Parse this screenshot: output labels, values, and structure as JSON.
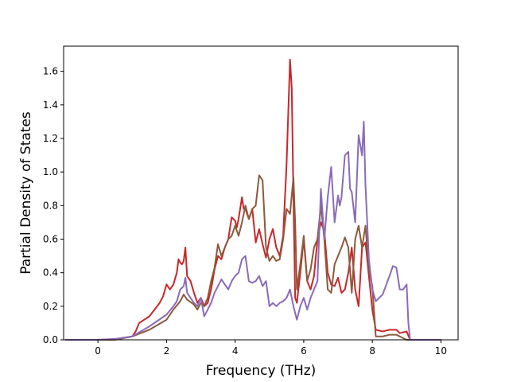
{
  "chart_data": {
    "type": "line",
    "title": "",
    "xlabel": "Frequency (THz)",
    "ylabel": "Partial Density of States",
    "xlim": [
      -1.0,
      10.5
    ],
    "ylim": [
      0.0,
      1.75
    ],
    "xticks": [
      0,
      2,
      4,
      6,
      8,
      10
    ],
    "yticks": [
      0.0,
      0.2,
      0.4,
      0.6,
      0.8,
      1.0,
      1.2,
      1.4,
      1.6
    ],
    "grid": false,
    "legend": "none",
    "series": [
      {
        "color": "#c8272a",
        "x": [
          -0.95,
          0.0,
          0.5,
          1.0,
          1.1,
          1.2,
          1.5,
          1.8,
          1.9,
          2.0,
          2.1,
          2.2,
          2.3,
          2.35,
          2.4,
          2.45,
          2.5,
          2.55,
          2.6,
          2.7,
          2.8,
          2.9,
          3.0,
          3.1,
          3.2,
          3.3,
          3.4,
          3.5,
          3.6,
          3.7,
          3.8,
          3.9,
          4.0,
          4.05,
          4.1,
          4.2,
          4.25,
          4.3,
          4.4,
          4.5,
          4.6,
          4.7,
          4.8,
          4.9,
          5.0,
          5.1,
          5.2,
          5.3,
          5.4,
          5.5,
          5.6,
          5.65,
          5.7,
          5.75,
          5.8,
          5.9,
          6.0,
          6.1,
          6.2,
          6.3,
          6.4,
          6.5,
          6.6,
          6.7,
          6.8,
          6.9,
          7.0,
          7.1,
          7.2,
          7.3,
          7.4,
          7.5,
          7.6,
          7.7,
          7.8,
          7.9,
          8.0,
          8.1,
          8.3,
          8.5,
          8.7,
          8.8,
          9.0,
          9.1,
          9.5,
          10.0
        ],
        "y": [
          0.0,
          0.0,
          0.005,
          0.02,
          0.05,
          0.1,
          0.14,
          0.22,
          0.26,
          0.33,
          0.3,
          0.33,
          0.4,
          0.48,
          0.46,
          0.45,
          0.47,
          0.55,
          0.38,
          0.35,
          0.28,
          0.22,
          0.25,
          0.2,
          0.22,
          0.3,
          0.42,
          0.5,
          0.48,
          0.55,
          0.6,
          0.73,
          0.71,
          0.67,
          0.72,
          0.85,
          0.78,
          0.78,
          0.72,
          0.78,
          0.58,
          0.66,
          0.57,
          0.49,
          0.6,
          0.66,
          0.55,
          0.5,
          0.62,
          1.05,
          1.67,
          1.5,
          0.85,
          0.25,
          0.22,
          0.4,
          0.6,
          0.35,
          0.3,
          0.38,
          0.6,
          0.7,
          0.65,
          0.4,
          0.33,
          0.32,
          0.37,
          0.28,
          0.3,
          0.4,
          0.55,
          0.3,
          0.2,
          0.55,
          0.58,
          0.38,
          0.18,
          0.06,
          0.05,
          0.06,
          0.06,
          0.04,
          0.05,
          0.0,
          0.0,
          0.0
        ]
      },
      {
        "color": "#8c5a3c",
        "x": [
          -0.95,
          0.0,
          0.5,
          1.0,
          1.5,
          2.0,
          2.2,
          2.4,
          2.5,
          2.6,
          2.8,
          2.9,
          3.0,
          3.1,
          3.2,
          3.3,
          3.4,
          3.5,
          3.6,
          3.7,
          3.8,
          3.9,
          4.0,
          4.1,
          4.2,
          4.3,
          4.4,
          4.5,
          4.6,
          4.7,
          4.8,
          4.9,
          5.0,
          5.1,
          5.2,
          5.3,
          5.4,
          5.5,
          5.6,
          5.7,
          5.75,
          5.8,
          5.9,
          6.0,
          6.1,
          6.2,
          6.3,
          6.4,
          6.5,
          6.6,
          6.7,
          6.8,
          6.9,
          7.0,
          7.1,
          7.2,
          7.3,
          7.4,
          7.5,
          7.6,
          7.7,
          7.8,
          7.9,
          8.0,
          8.1,
          8.3,
          8.5,
          8.7,
          8.8,
          9.0,
          9.1,
          9.5,
          10.0
        ],
        "y": [
          0.0,
          0.0,
          0.0,
          0.02,
          0.06,
          0.12,
          0.18,
          0.23,
          0.27,
          0.24,
          0.21,
          0.18,
          0.22,
          0.2,
          0.25,
          0.35,
          0.43,
          0.57,
          0.5,
          0.55,
          0.6,
          0.62,
          0.68,
          0.62,
          0.7,
          0.8,
          0.72,
          0.78,
          0.8,
          0.98,
          0.95,
          0.55,
          0.47,
          0.5,
          0.47,
          0.48,
          0.6,
          0.78,
          0.75,
          0.97,
          0.7,
          0.3,
          0.45,
          0.62,
          0.35,
          0.42,
          0.55,
          0.6,
          0.8,
          0.6,
          0.3,
          0.28,
          0.45,
          0.5,
          0.55,
          0.61,
          0.55,
          0.28,
          0.6,
          0.68,
          0.55,
          0.68,
          0.42,
          0.32,
          0.02,
          0.02,
          0.03,
          0.03,
          0.02,
          0.0,
          0.0,
          0.0,
          0.0
        ]
      },
      {
        "color": "#8a6bb8",
        "x": [
          -0.95,
          0.0,
          0.5,
          1.0,
          1.5,
          2.0,
          2.2,
          2.3,
          2.4,
          2.5,
          2.55,
          2.6,
          2.7,
          2.8,
          2.9,
          3.0,
          3.1,
          3.2,
          3.3,
          3.4,
          3.5,
          3.6,
          3.7,
          3.8,
          3.9,
          4.0,
          4.1,
          4.2,
          4.3,
          4.4,
          4.5,
          4.6,
          4.7,
          4.8,
          4.9,
          5.0,
          5.1,
          5.2,
          5.3,
          5.4,
          5.5,
          5.6,
          5.7,
          5.8,
          5.9,
          6.0,
          6.1,
          6.2,
          6.3,
          6.4,
          6.5,
          6.6,
          6.7,
          6.8,
          6.9,
          7.0,
          7.05,
          7.1,
          7.2,
          7.3,
          7.35,
          7.4,
          7.5,
          7.6,
          7.7,
          7.75,
          7.8,
          7.85,
          7.9,
          8.0,
          8.1,
          8.3,
          8.5,
          8.6,
          8.7,
          8.8,
          8.9,
          9.0,
          9.05,
          9.1,
          9.5,
          10.0
        ],
        "y": [
          0.0,
          0.0,
          0.005,
          0.02,
          0.08,
          0.15,
          0.2,
          0.23,
          0.3,
          0.32,
          0.37,
          0.28,
          0.25,
          0.22,
          0.2,
          0.25,
          0.14,
          0.18,
          0.22,
          0.28,
          0.32,
          0.36,
          0.33,
          0.3,
          0.35,
          0.38,
          0.4,
          0.48,
          0.5,
          0.35,
          0.34,
          0.35,
          0.38,
          0.32,
          0.35,
          0.2,
          0.22,
          0.2,
          0.22,
          0.23,
          0.25,
          0.3,
          0.2,
          0.12,
          0.2,
          0.25,
          0.18,
          0.25,
          0.3,
          0.35,
          0.9,
          0.6,
          0.85,
          1.03,
          0.7,
          0.86,
          0.8,
          0.85,
          1.1,
          1.12,
          0.9,
          0.88,
          0.7,
          1.22,
          1.1,
          1.3,
          0.92,
          0.7,
          0.48,
          0.3,
          0.23,
          0.27,
          0.38,
          0.44,
          0.43,
          0.3,
          0.3,
          0.33,
          0.1,
          0.0,
          0.0,
          0.0
        ]
      }
    ]
  }
}
